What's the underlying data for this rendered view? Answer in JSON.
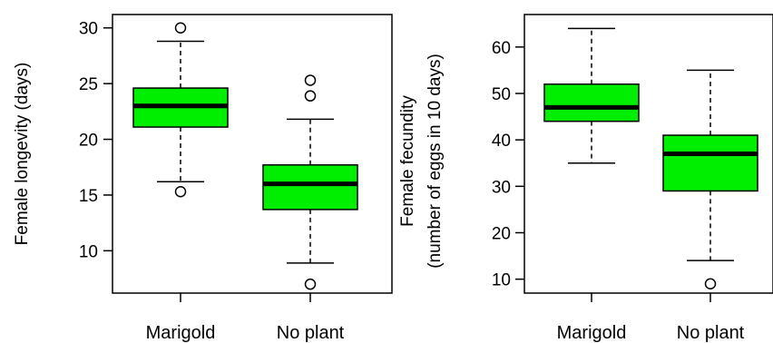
{
  "chart_data": [
    {
      "type": "boxplot",
      "title": "",
      "xlabel": "",
      "ylabel": "Female longevity (days)",
      "ylim": [
        6.2,
        31.2
      ],
      "yticks": [
        10,
        15,
        20,
        25,
        30
      ],
      "grid": false,
      "legend": "none",
      "box_color": "#00ee00",
      "categories": [
        "Marigold",
        "No plant"
      ],
      "boxes": [
        {
          "name": "Marigold",
          "whisker_low": 16.2,
          "q1": 21.1,
          "median": 23.0,
          "q3": 24.6,
          "whisker_high": 28.8,
          "outliers": [
            30.0,
            15.3
          ]
        },
        {
          "name": "No plant",
          "whisker_low": 8.9,
          "q1": 13.7,
          "median": 16.0,
          "q3": 17.7,
          "whisker_high": 21.8,
          "outliers": [
            25.3,
            23.9,
            7.0
          ]
        }
      ]
    },
    {
      "type": "boxplot",
      "title": "",
      "xlabel": "",
      "ylabel_lines": [
        "Female fecundity",
        "(number of eggs in 10 days)"
      ],
      "ylim": [
        7,
        67
      ],
      "yticks": [
        10,
        20,
        30,
        40,
        50,
        60
      ],
      "grid": false,
      "legend": "none",
      "box_color": "#00ee00",
      "categories": [
        "Marigold",
        "No plant"
      ],
      "boxes": [
        {
          "name": "Marigold",
          "whisker_low": 35,
          "q1": 44,
          "median": 47,
          "q3": 52,
          "whisker_high": 64,
          "outliers": []
        },
        {
          "name": "No plant",
          "whisker_low": 14,
          "q1": 29,
          "median": 37,
          "q3": 41,
          "whisker_high": 55,
          "outliers": [
            9
          ]
        }
      ]
    }
  ]
}
